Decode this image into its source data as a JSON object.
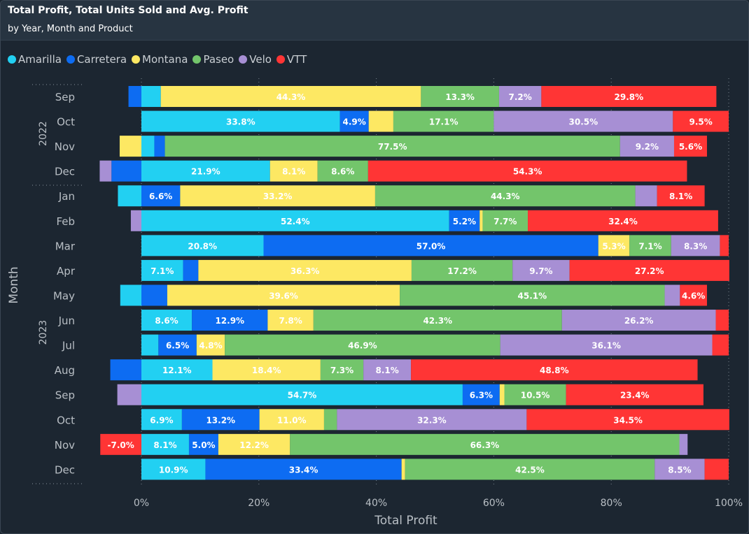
{
  "header": {
    "title": "Total Profit, Total Units Sold and Avg. Profit",
    "subtitle": "by Year, Month and Product"
  },
  "colors": {
    "Amarilla": "#22d0f2",
    "Carretera": "#0d6cf2",
    "Montana": "#fde863",
    "Paseo": "#73c56b",
    "Velo": "#a78fd4",
    "VTT": "#ff3535"
  },
  "chart_data": {
    "type": "bar",
    "orientation": "horizontal",
    "stacked": "100%-diverging",
    "title": "Total Profit, Total Units Sold and Avg. Profit",
    "subtitle": "by Year, Month and Product",
    "xlabel": "Total Profit",
    "ylabel": "Month",
    "xlim": [
      -7,
      100
    ],
    "xticks": [
      "0%",
      "20%",
      "40%",
      "60%",
      "80%",
      "100%"
    ],
    "legend_position": "top-left",
    "grid": true,
    "series_names": [
      "Amarilla",
      "Carretera",
      "Montana",
      "Paseo",
      "Velo",
      "VTT"
    ],
    "groups": [
      {
        "year": "2022",
        "months": [
          "Sep",
          "Oct",
          "Nov",
          "Dec"
        ]
      },
      {
        "year": "2023",
        "months": [
          "Jan",
          "Feb",
          "Mar",
          "Apr",
          "May",
          "Jun",
          "Jul",
          "Aug",
          "Sep",
          "Oct",
          "Nov",
          "Dec"
        ]
      }
    ],
    "rows": [
      {
        "month": "Sep",
        "values": [
          3.3,
          -2.2,
          44.3,
          13.3,
          7.2,
          29.8
        ]
      },
      {
        "month": "Oct",
        "values": [
          33.8,
          4.9,
          4.2,
          17.1,
          30.5,
          9.5
        ]
      },
      {
        "month": "Nov",
        "values": [
          2.2,
          1.8,
          -3.7,
          77.5,
          9.2,
          5.6
        ]
      },
      {
        "month": "Dec",
        "values": [
          21.9,
          -5.1,
          8.1,
          8.6,
          -2.0,
          54.3
        ]
      },
      {
        "month": "Jan",
        "values": [
          -4.0,
          6.6,
          33.2,
          44.3,
          3.7,
          8.1
        ]
      },
      {
        "month": "Feb",
        "values": [
          52.4,
          5.2,
          0.5,
          7.7,
          -1.8,
          32.4
        ]
      },
      {
        "month": "Mar",
        "values": [
          20.8,
          57.0,
          5.3,
          7.1,
          8.3,
          1.5
        ]
      },
      {
        "month": "Apr",
        "values": [
          7.1,
          2.6,
          36.3,
          17.2,
          9.7,
          27.2
        ]
      },
      {
        "month": "May",
        "values": [
          -3.6,
          4.4,
          39.6,
          45.1,
          2.6,
          4.6
        ]
      },
      {
        "month": "Jun",
        "values": [
          8.6,
          12.9,
          7.8,
          42.3,
          26.2,
          2.2
        ]
      },
      {
        "month": "Jul",
        "values": [
          2.9,
          6.5,
          4.8,
          46.9,
          36.1,
          2.8
        ]
      },
      {
        "month": "Aug",
        "values": [
          12.1,
          -5.3,
          18.4,
          7.3,
          8.1,
          48.8
        ]
      },
      {
        "month": "Sep",
        "values": [
          54.7,
          6.3,
          0.8,
          10.5,
          -4.1,
          23.4
        ]
      },
      {
        "month": "Oct",
        "values": [
          6.9,
          13.2,
          11.0,
          2.2,
          32.3,
          34.5
        ]
      },
      {
        "month": "Nov",
        "values": [
          8.1,
          5.0,
          12.2,
          66.3,
          1.4,
          -7.0
        ]
      },
      {
        "month": "Dec",
        "values": [
          10.9,
          33.4,
          0.6,
          42.5,
          8.5,
          4.1
        ]
      }
    ],
    "data_labels": [
      [
        null,
        null,
        "44.3%",
        "13.3%",
        "7.2%",
        "29.8%"
      ],
      [
        "33.8%",
        "4.9%",
        null,
        "17.1%",
        "30.5%",
        "9.5%"
      ],
      [
        null,
        null,
        null,
        "77.5%",
        "9.2%",
        "5.6%"
      ],
      [
        "21.9%",
        null,
        "8.1%",
        "8.6%",
        null,
        "54.3%"
      ],
      [
        null,
        "6.6%",
        "33.2%",
        "44.3%",
        null,
        "8.1%"
      ],
      [
        "52.4%",
        "5.2%",
        null,
        "7.7%",
        null,
        "32.4%"
      ],
      [
        "20.8%",
        "57.0%",
        "5.3%",
        "7.1%",
        "8.3%",
        null
      ],
      [
        "7.1%",
        null,
        "36.3%",
        "17.2%",
        "9.7%",
        "27.2%"
      ],
      [
        null,
        null,
        "39.6%",
        "45.1%",
        null,
        "4.6%"
      ],
      [
        "8.6%",
        "12.9%",
        "7.8%",
        "42.3%",
        "26.2%",
        null
      ],
      [
        null,
        "6.5%",
        "4.8%",
        "46.9%",
        "36.1%",
        null
      ],
      [
        "12.1%",
        null,
        "18.4%",
        "7.3%",
        "8.1%",
        "48.8%"
      ],
      [
        "54.7%",
        "6.3%",
        null,
        "10.5%",
        null,
        "23.4%"
      ],
      [
        "6.9%",
        "13.2%",
        "11.0%",
        null,
        "32.3%",
        "34.5%"
      ],
      [
        "8.1%",
        "5.0%",
        "12.2%",
        "66.3%",
        null,
        "-7.0%"
      ],
      [
        "10.9%",
        "33.4%",
        null,
        "42.5%",
        "8.5%",
        null
      ]
    ]
  }
}
